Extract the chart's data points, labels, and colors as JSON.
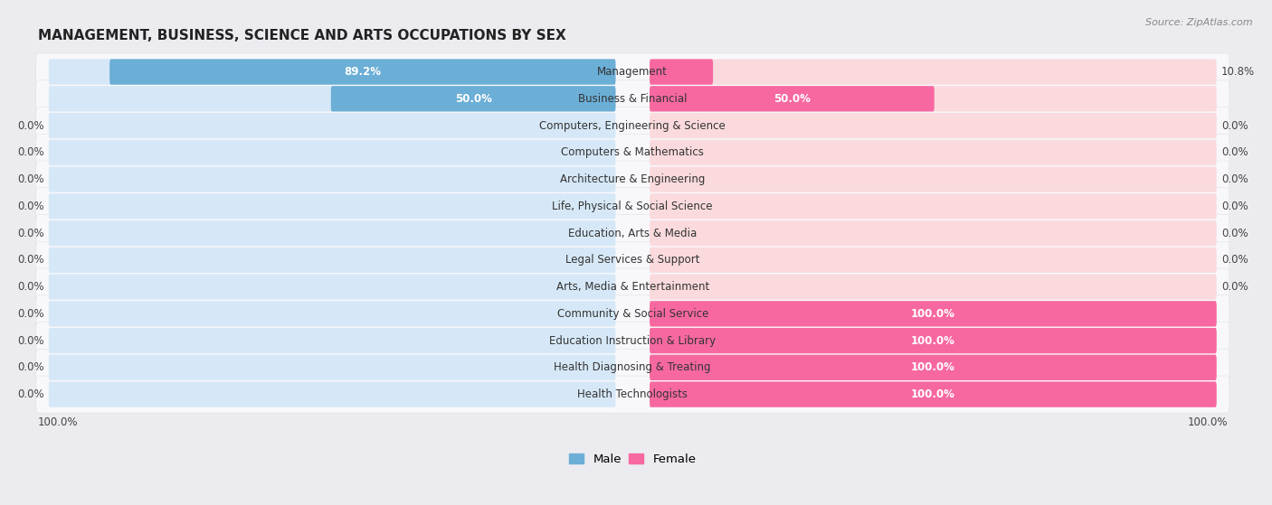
{
  "title": "MANAGEMENT, BUSINESS, SCIENCE AND ARTS OCCUPATIONS BY SEX",
  "source": "Source: ZipAtlas.com",
  "categories": [
    "Management",
    "Business & Financial",
    "Computers, Engineering & Science",
    "Computers & Mathematics",
    "Architecture & Engineering",
    "Life, Physical & Social Science",
    "Education, Arts & Media",
    "Legal Services & Support",
    "Arts, Media & Entertainment",
    "Community & Social Service",
    "Education Instruction & Library",
    "Health Diagnosing & Treating",
    "Health Technologists"
  ],
  "male_values": [
    89.2,
    50.0,
    0.0,
    0.0,
    0.0,
    0.0,
    0.0,
    0.0,
    0.0,
    0.0,
    0.0,
    0.0,
    0.0
  ],
  "female_values": [
    10.8,
    50.0,
    0.0,
    0.0,
    0.0,
    0.0,
    0.0,
    0.0,
    0.0,
    100.0,
    100.0,
    100.0,
    100.0
  ],
  "male_color": "#6baed6",
  "female_color": "#f768a1",
  "bg_male": "#d6e8f7",
  "bg_female": "#fadadd",
  "background_color": "#ebebf0",
  "row_color": "#f5f5f8",
  "title_fontsize": 11,
  "label_fontsize": 8.5,
  "value_fontsize": 8.5,
  "legend_fontsize": 9.5
}
